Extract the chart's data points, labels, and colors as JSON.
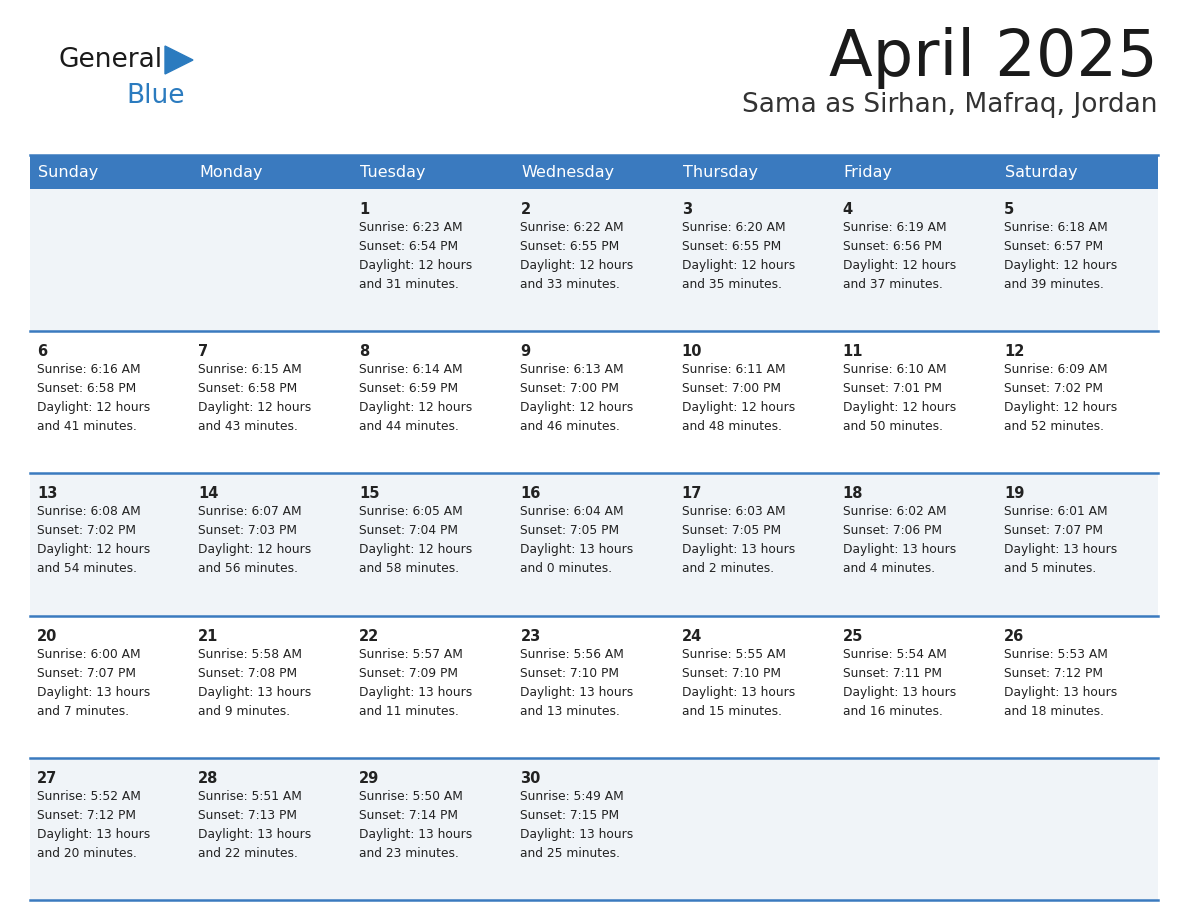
{
  "title": "April 2025",
  "subtitle": "Sama as Sirhan, Mafraq, Jordan",
  "days_of_week": [
    "Sunday",
    "Monday",
    "Tuesday",
    "Wednesday",
    "Thursday",
    "Friday",
    "Saturday"
  ],
  "header_bg_color": "#3a7abf",
  "header_text_color": "#ffffff",
  "row_bg_even": "#f0f4f8",
  "row_bg_odd": "#ffffff",
  "separator_color": "#3a7abf",
  "text_color": "#222222",
  "title_color": "#1a1a1a",
  "logo_text_color": "#1a1a1a",
  "logo_blue_color": "#2b7bbf",
  "subtitle_color": "#333333",
  "calendar_data": [
    [
      {
        "day": null,
        "sunrise": null,
        "sunset": null,
        "daylight_line1": null,
        "daylight_line2": null
      },
      {
        "day": null,
        "sunrise": null,
        "sunset": null,
        "daylight_line1": null,
        "daylight_line2": null
      },
      {
        "day": "1",
        "sunrise": "6:23 AM",
        "sunset": "6:54 PM",
        "daylight_line1": "Daylight: 12 hours",
        "daylight_line2": "and 31 minutes."
      },
      {
        "day": "2",
        "sunrise": "6:22 AM",
        "sunset": "6:55 PM",
        "daylight_line1": "Daylight: 12 hours",
        "daylight_line2": "and 33 minutes."
      },
      {
        "day": "3",
        "sunrise": "6:20 AM",
        "sunset": "6:55 PM",
        "daylight_line1": "Daylight: 12 hours",
        "daylight_line2": "and 35 minutes."
      },
      {
        "day": "4",
        "sunrise": "6:19 AM",
        "sunset": "6:56 PM",
        "daylight_line1": "Daylight: 12 hours",
        "daylight_line2": "and 37 minutes."
      },
      {
        "day": "5",
        "sunrise": "6:18 AM",
        "sunset": "6:57 PM",
        "daylight_line1": "Daylight: 12 hours",
        "daylight_line2": "and 39 minutes."
      }
    ],
    [
      {
        "day": "6",
        "sunrise": "6:16 AM",
        "sunset": "6:58 PM",
        "daylight_line1": "Daylight: 12 hours",
        "daylight_line2": "and 41 minutes."
      },
      {
        "day": "7",
        "sunrise": "6:15 AM",
        "sunset": "6:58 PM",
        "daylight_line1": "Daylight: 12 hours",
        "daylight_line2": "and 43 minutes."
      },
      {
        "day": "8",
        "sunrise": "6:14 AM",
        "sunset": "6:59 PM",
        "daylight_line1": "Daylight: 12 hours",
        "daylight_line2": "and 44 minutes."
      },
      {
        "day": "9",
        "sunrise": "6:13 AM",
        "sunset": "7:00 PM",
        "daylight_line1": "Daylight: 12 hours",
        "daylight_line2": "and 46 minutes."
      },
      {
        "day": "10",
        "sunrise": "6:11 AM",
        "sunset": "7:00 PM",
        "daylight_line1": "Daylight: 12 hours",
        "daylight_line2": "and 48 minutes."
      },
      {
        "day": "11",
        "sunrise": "6:10 AM",
        "sunset": "7:01 PM",
        "daylight_line1": "Daylight: 12 hours",
        "daylight_line2": "and 50 minutes."
      },
      {
        "day": "12",
        "sunrise": "6:09 AM",
        "sunset": "7:02 PM",
        "daylight_line1": "Daylight: 12 hours",
        "daylight_line2": "and 52 minutes."
      }
    ],
    [
      {
        "day": "13",
        "sunrise": "6:08 AM",
        "sunset": "7:02 PM",
        "daylight_line1": "Daylight: 12 hours",
        "daylight_line2": "and 54 minutes."
      },
      {
        "day": "14",
        "sunrise": "6:07 AM",
        "sunset": "7:03 PM",
        "daylight_line1": "Daylight: 12 hours",
        "daylight_line2": "and 56 minutes."
      },
      {
        "day": "15",
        "sunrise": "6:05 AM",
        "sunset": "7:04 PM",
        "daylight_line1": "Daylight: 12 hours",
        "daylight_line2": "and 58 minutes."
      },
      {
        "day": "16",
        "sunrise": "6:04 AM",
        "sunset": "7:05 PM",
        "daylight_line1": "Daylight: 13 hours",
        "daylight_line2": "and 0 minutes."
      },
      {
        "day": "17",
        "sunrise": "6:03 AM",
        "sunset": "7:05 PM",
        "daylight_line1": "Daylight: 13 hours",
        "daylight_line2": "and 2 minutes."
      },
      {
        "day": "18",
        "sunrise": "6:02 AM",
        "sunset": "7:06 PM",
        "daylight_line1": "Daylight: 13 hours",
        "daylight_line2": "and 4 minutes."
      },
      {
        "day": "19",
        "sunrise": "6:01 AM",
        "sunset": "7:07 PM",
        "daylight_line1": "Daylight: 13 hours",
        "daylight_line2": "and 5 minutes."
      }
    ],
    [
      {
        "day": "20",
        "sunrise": "6:00 AM",
        "sunset": "7:07 PM",
        "daylight_line1": "Daylight: 13 hours",
        "daylight_line2": "and 7 minutes."
      },
      {
        "day": "21",
        "sunrise": "5:58 AM",
        "sunset": "7:08 PM",
        "daylight_line1": "Daylight: 13 hours",
        "daylight_line2": "and 9 minutes."
      },
      {
        "day": "22",
        "sunrise": "5:57 AM",
        "sunset": "7:09 PM",
        "daylight_line1": "Daylight: 13 hours",
        "daylight_line2": "and 11 minutes."
      },
      {
        "day": "23",
        "sunrise": "5:56 AM",
        "sunset": "7:10 PM",
        "daylight_line1": "Daylight: 13 hours",
        "daylight_line2": "and 13 minutes."
      },
      {
        "day": "24",
        "sunrise": "5:55 AM",
        "sunset": "7:10 PM",
        "daylight_line1": "Daylight: 13 hours",
        "daylight_line2": "and 15 minutes."
      },
      {
        "day": "25",
        "sunrise": "5:54 AM",
        "sunset": "7:11 PM",
        "daylight_line1": "Daylight: 13 hours",
        "daylight_line2": "and 16 minutes."
      },
      {
        "day": "26",
        "sunrise": "5:53 AM",
        "sunset": "7:12 PM",
        "daylight_line1": "Daylight: 13 hours",
        "daylight_line2": "and 18 minutes."
      }
    ],
    [
      {
        "day": "27",
        "sunrise": "5:52 AM",
        "sunset": "7:12 PM",
        "daylight_line1": "Daylight: 13 hours",
        "daylight_line2": "and 20 minutes."
      },
      {
        "day": "28",
        "sunrise": "5:51 AM",
        "sunset": "7:13 PM",
        "daylight_line1": "Daylight: 13 hours",
        "daylight_line2": "and 22 minutes."
      },
      {
        "day": "29",
        "sunrise": "5:50 AM",
        "sunset": "7:14 PM",
        "daylight_line1": "Daylight: 13 hours",
        "daylight_line2": "and 23 minutes."
      },
      {
        "day": "30",
        "sunrise": "5:49 AM",
        "sunset": "7:15 PM",
        "daylight_line1": "Daylight: 13 hours",
        "daylight_line2": "and 25 minutes."
      },
      {
        "day": null,
        "sunrise": null,
        "sunset": null,
        "daylight_line1": null,
        "daylight_line2": null
      },
      {
        "day": null,
        "sunrise": null,
        "sunset": null,
        "daylight_line1": null,
        "daylight_line2": null
      },
      {
        "day": null,
        "sunrise": null,
        "sunset": null,
        "daylight_line1": null,
        "daylight_line2": null
      }
    ]
  ]
}
